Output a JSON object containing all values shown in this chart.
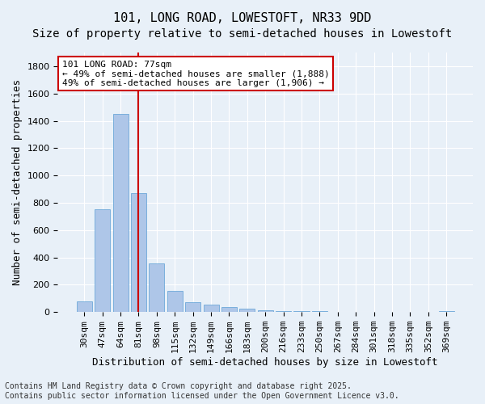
{
  "title1": "101, LONG ROAD, LOWESTOFT, NR33 9DD",
  "title2": "Size of property relative to semi-detached houses in Lowestoft",
  "xlabel": "Distribution of semi-detached houses by size in Lowestoft",
  "ylabel": "Number of semi-detached properties",
  "categories": [
    "30sqm",
    "47sqm",
    "64sqm",
    "81sqm",
    "98sqm",
    "115sqm",
    "132sqm",
    "149sqm",
    "166sqm",
    "183sqm",
    "200sqm",
    "216sqm",
    "233sqm",
    "250sqm",
    "267sqm",
    "284sqm",
    "301sqm",
    "318sqm",
    "335sqm",
    "352sqm",
    "369sqm"
  ],
  "values": [
    80,
    750,
    1450,
    870,
    355,
    155,
    75,
    55,
    35,
    25,
    15,
    10,
    8,
    5,
    3,
    2,
    2,
    1,
    1,
    1,
    10
  ],
  "bar_color": "#aec6e8",
  "bar_edge_color": "#5a9fd4",
  "vline_x": 3,
  "vline_color": "#cc0000",
  "annotation_title": "101 LONG ROAD: 77sqm",
  "annotation_line1": "← 49% of semi-detached houses are smaller (1,888)",
  "annotation_line2": "49% of semi-detached houses are larger (1,906) →",
  "annotation_box_color": "#ffffff",
  "annotation_edge_color": "#cc0000",
  "footer": "Contains HM Land Registry data © Crown copyright and database right 2025.\nContains public sector information licensed under the Open Government Licence v3.0.",
  "ylim": [
    0,
    1900
  ],
  "yticks": [
    0,
    200,
    400,
    600,
    800,
    1000,
    1200,
    1400,
    1600,
    1800
  ],
  "background_color": "#e8f0f8",
  "grid_color": "#ffffff",
  "title1_fontsize": 11,
  "title2_fontsize": 10,
  "xlabel_fontsize": 9,
  "ylabel_fontsize": 9,
  "tick_fontsize": 8,
  "annotation_fontsize": 8,
  "footer_fontsize": 7
}
